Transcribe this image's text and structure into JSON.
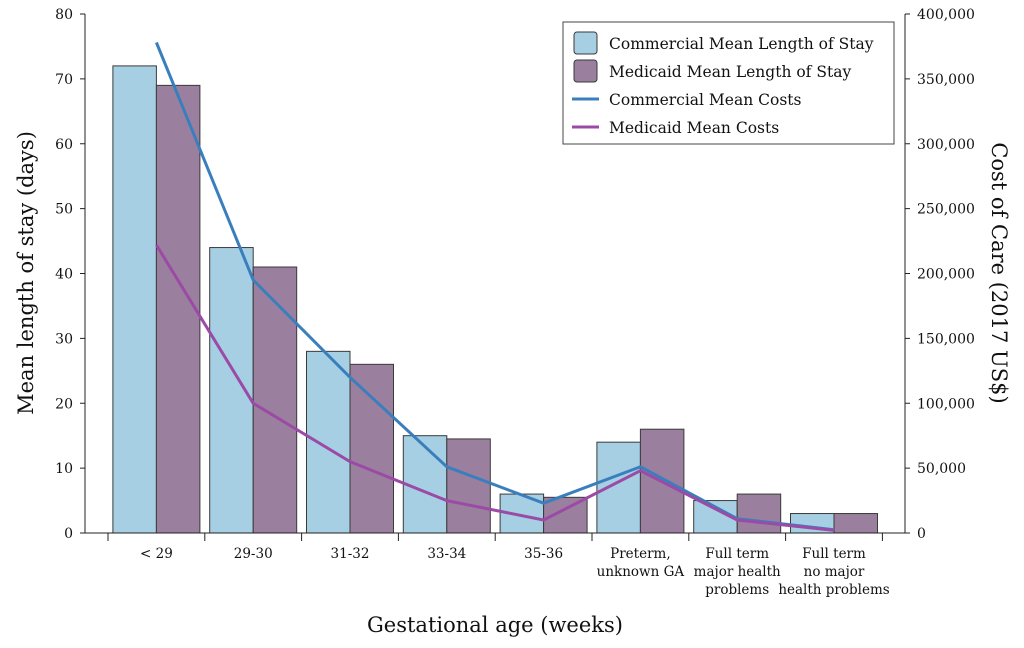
{
  "chart_data": {
    "type": "bar",
    "title": "",
    "xlabel": "Gestational age (weeks)",
    "ylabel": "Mean length of stay (days)",
    "y2label": "Cost of Care (2017 US$)",
    "ylim": [
      0,
      80
    ],
    "y2lim": [
      0,
      400000
    ],
    "yticks": [
      "0",
      "10",
      "20",
      "30",
      "40",
      "50",
      "60",
      "70",
      "80"
    ],
    "y2ticks": [
      "0",
      "50,000",
      "100,000",
      "150,000",
      "200,000",
      "250,000",
      "300,000",
      "350,000",
      "400,000"
    ],
    "grid": false,
    "legend_position": "top-right",
    "categories": [
      [
        "< 29"
      ],
      [
        "29-30"
      ],
      [
        "31-32"
      ],
      [
        "33-34"
      ],
      [
        "35-36"
      ],
      [
        "Preterm,",
        "unknown GA"
      ],
      [
        "Full term",
        "major health",
        "problems"
      ],
      [
        "Full term",
        "no major",
        "health problems"
      ]
    ],
    "series": [
      {
        "name": "Commercial Mean Length of Stay",
        "kind": "bar",
        "axis": "left",
        "color": "#a6cfe3",
        "values": [
          72,
          44,
          28,
          15,
          6,
          14,
          5,
          3
        ]
      },
      {
        "name": "Medicaid Mean Length of Stay",
        "kind": "bar",
        "axis": "left",
        "color": "#9b7f9e",
        "values": [
          69,
          41,
          26,
          14.5,
          5.5,
          16,
          6,
          3
        ]
      },
      {
        "name": "Commercial Mean Costs",
        "kind": "line",
        "axis": "right",
        "color": "#3a7fbd",
        "values": [
          378000,
          195000,
          120000,
          51000,
          23000,
          51000,
          11000,
          2500
        ]
      },
      {
        "name": "Medicaid Mean Costs",
        "kind": "line",
        "axis": "right",
        "color": "#9b4aa6",
        "values": [
          222000,
          100000,
          55000,
          25000,
          10000,
          48000,
          10000,
          2000
        ]
      }
    ]
  }
}
